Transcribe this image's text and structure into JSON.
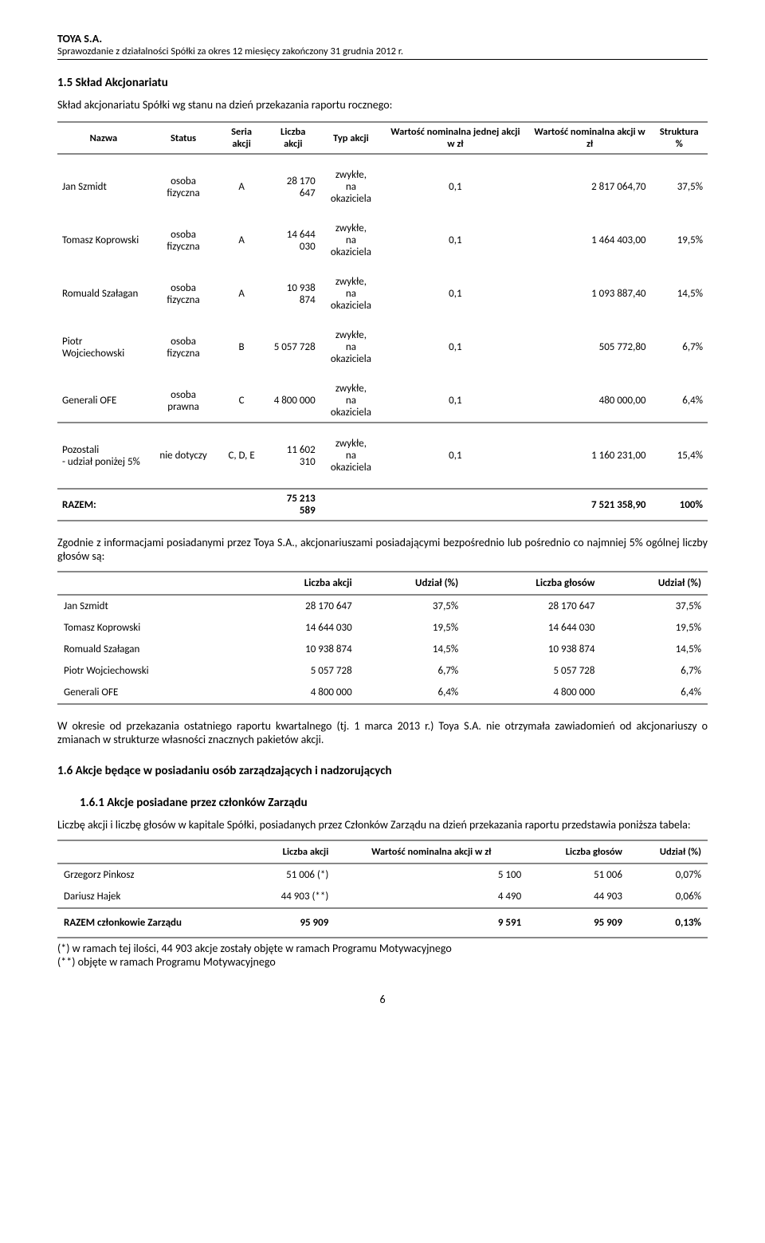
{
  "header": {
    "company": "TOYA S.A.",
    "subtitle": "Sprawozdanie z działalności Spółki za okres 12 miesięcy zakończony 31 grudnia 2012 r."
  },
  "sec15": {
    "heading": "1.5  Skład Akcjonariatu",
    "intro": "Skład akcjonariatu Spółki wg stanu na dzień przekazania raportu rocznego:"
  },
  "table1": {
    "headers": [
      "Nazwa",
      "Status",
      "Seria akcji",
      "Liczba akcji",
      "Typ akcji",
      "Wartość nominalna jednej akcji w zł",
      "Wartość nominalna akcji w zł",
      "Struktura %"
    ],
    "rows": [
      {
        "nazwa": "Jan Szmidt",
        "status": "osoba fizyczna",
        "seria": "A",
        "liczba": "28 170 647",
        "typ": "zwykłe, na okaziciela",
        "wnj": "0,1",
        "wn": "2 817 064,70",
        "str": "37,5%"
      },
      {
        "nazwa": "Tomasz Koprowski",
        "status": "osoba fizyczna",
        "seria": "A",
        "liczba": "14 644 030",
        "typ": "zwykłe, na okaziciela",
        "wnj": "0,1",
        "wn": "1 464 403,00",
        "str": "19,5%"
      },
      {
        "nazwa": "Romuald Szałagan",
        "status": "osoba fizyczna",
        "seria": "A",
        "liczba": "10 938 874",
        "typ": "zwykłe, na okaziciela",
        "wnj": "0,1",
        "wn": "1 093 887,40",
        "str": "14,5%"
      },
      {
        "nazwa": "Piotr Wojciechowski",
        "status": "osoba fizyczna",
        "seria": "B",
        "liczba": "5 057 728",
        "typ": "zwykłe, na okaziciela",
        "wnj": "0,1",
        "wn": "505 772,80",
        "str": "6,7%"
      },
      {
        "nazwa": "Generali OFE",
        "status": "osoba prawna",
        "seria": "C",
        "liczba": "4 800 000",
        "typ": "zwykłe, na okaziciela",
        "wnj": "0,1",
        "wn": "480 000,00",
        "str": "6,4%"
      }
    ],
    "pozostali": {
      "nazwa": "Pozostali - udział poniżej 5%",
      "status": "nie dotyczy",
      "seria": "C, D, E",
      "liczba": "11 602 310",
      "typ": "zwykłe, na okaziciela",
      "wnj": "0,1",
      "wn": "1 160 231,00",
      "str": "15,4%"
    },
    "razem": {
      "label": "RAZEM:",
      "liczba": "75 213 589",
      "wn": "7 521 358,90",
      "str": "100%"
    }
  },
  "para1": "Zgodnie z informacjami posiadanymi przez Toya S.A., akcjonariuszami posiadającymi bezpośrednio lub pośrednio co najmniej 5% ogólnej liczby głosów są:",
  "table2": {
    "headers": [
      "",
      "Liczba akcji",
      "Udział (%)",
      "Liczba głosów",
      "Udział (%)"
    ],
    "rows": [
      {
        "n": "Jan Szmidt",
        "la": "28 170 647",
        "u1": "37,5%",
        "lg": "28 170 647",
        "u2": "37,5%"
      },
      {
        "n": "Tomasz Koprowski",
        "la": "14 644 030",
        "u1": "19,5%",
        "lg": "14 644 030",
        "u2": "19,5%"
      },
      {
        "n": "Romuald Szałagan",
        "la": "10 938 874",
        "u1": "14,5%",
        "lg": "10 938 874",
        "u2": "14,5%"
      },
      {
        "n": "Piotr Wojciechowski",
        "la": "5 057 728",
        "u1": "6,7%",
        "lg": "5 057 728",
        "u2": "6,7%"
      },
      {
        "n": "Generali OFE",
        "la": "4 800 000",
        "u1": "6,4%",
        "lg": "4 800 000",
        "u2": "6,4%"
      }
    ]
  },
  "para2": "W okresie od przekazania ostatniego raportu kwartalnego (tj. 1 marca 2013 r.) Toya S.A. nie otrzymała zawiadomień od akcjonariuszy o zmianach w strukturze własności znacznych pakietów akcji.",
  "sec16": "1.6  Akcje będące w posiadaniu osób zarządzających i nadzorujących",
  "sec161": "1.6.1  Akcje posiadane przez członków Zarządu",
  "para3": "Liczbę akcji i liczbę głosów w kapitale Spółki, posiadanych przez Członków Zarządu na dzień przekazania raportu przedstawia poniższa tabela:",
  "table3": {
    "headers": [
      "",
      "Liczba akcji",
      "Wartość nominalna akcji w zł",
      "Liczba głosów",
      "Udział (%)"
    ],
    "rows": [
      {
        "n": "Grzegorz Pinkosz",
        "la": "51 006  (*)",
        "wn": "5 100",
        "lg": "51 006",
        "u": "0,07%"
      },
      {
        "n": "Dariusz Hajek",
        "la": "44 903 (**)",
        "wn": "4 490",
        "lg": "44 903",
        "u": "0,06%"
      }
    ],
    "razem": {
      "label": "RAZEM członkowie Zarządu",
      "la": "95 909",
      "wn": "9 591",
      "lg": "95 909",
      "u": "0,13%"
    }
  },
  "footnote1": "(*) w ramach tej ilości, 44 903 akcje zostały objęte w ramach Programu Motywacyjnego",
  "footnote2": "(**) objęte w ramach Programu Motywacyjnego",
  "pagenum": "6"
}
